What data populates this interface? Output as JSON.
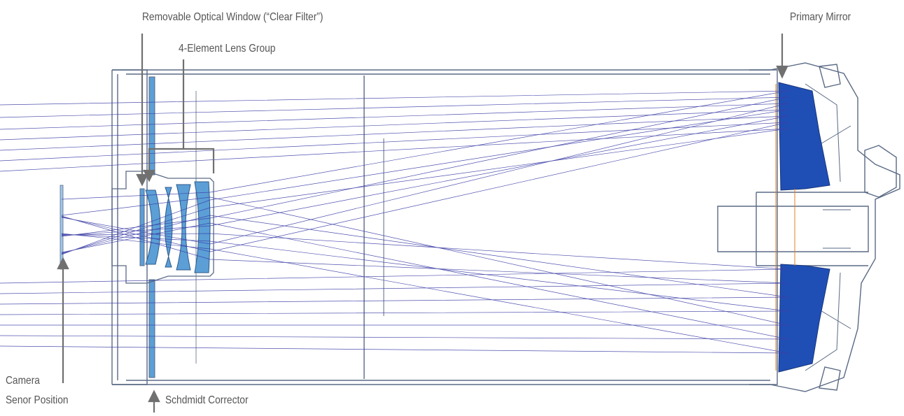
{
  "labels": {
    "removable_window": "Removable Optical Window (“Clear Filter”)",
    "lens_group": "4-Element Lens Group",
    "primary_mirror": "Primary Mirror",
    "camera_line1": "Camera",
    "camera_line2": "Senor Position",
    "corrector": "Schdmidt Corrector"
  },
  "colors": {
    "ray": "#3d3fa6",
    "outline": "#5a6a85",
    "glass": "#5b9fd6",
    "mirror": "#1f4fb5",
    "arrow": "#707070",
    "label": "#555555",
    "accent": "#e08020"
  }
}
